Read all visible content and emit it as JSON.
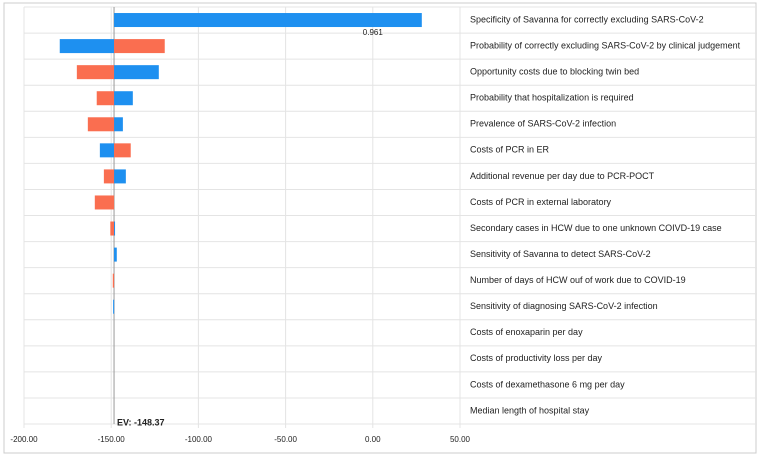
{
  "chart_data": {
    "type": "tornado",
    "categories": [
      "Specificity of Savanna for correctly excluding SARS-CoV-2",
      "Probability of correctly excluding SARS-CoV-2 by clinical judgement",
      "Opportunity costs due to blocking twin bed",
      "Probability that hospitalization is required",
      "Prevalence of SARS-CoV-2 infection",
      "Costs of PCR in ER",
      "Additional revenue per day due to PCR-POCT",
      "Costs of PCR in external laboratory",
      "Secondary cases in HCW due to one unknown COIVD-19 case",
      "Sensitivity of Savanna to detect SARS-CoV-2",
      "Number of days of HCW ouf of work due to COVID-19",
      "Sensitivity of diagnosing  SARS-CoV-2 infection",
      "Costs of enoxaparin per day",
      "Costs of productivity loss per day",
      "Costs of dexamethasone 6 mg per day",
      "Median length of hospital stay"
    ],
    "series": [
      {
        "color": "#1e90f0",
        "values": [
          28.1,
          -179.5,
          -122.7,
          -137.6,
          -143.3,
          -156.5,
          -141.6,
          null,
          -147.8,
          -146.8,
          null,
          -148.9,
          null,
          null,
          null,
          null
        ]
      },
      {
        "color": "#fa6e50",
        "values": [
          null,
          -119.3,
          -169.7,
          -158.3,
          -163.4,
          -138.8,
          -154.2,
          -159.4,
          -150.5,
          null,
          -149.1,
          null,
          null,
          null,
          null,
          null
        ]
      }
    ],
    "annotation": "0.961",
    "ev": -148.37,
    "ev_label": "EV: -148.37",
    "xlim": [
      -200,
      50
    ],
    "xticks": [
      {
        "value": -200,
        "label": "-200.00"
      },
      {
        "value": -150,
        "label": "-150.00"
      },
      {
        "value": -100,
        "label": "-100.00"
      },
      {
        "value": -50,
        "label": "-50.00"
      },
      {
        "value": 0,
        "label": "0.00"
      },
      {
        "value": 50,
        "label": "50.00"
      }
    ],
    "grid": true
  }
}
